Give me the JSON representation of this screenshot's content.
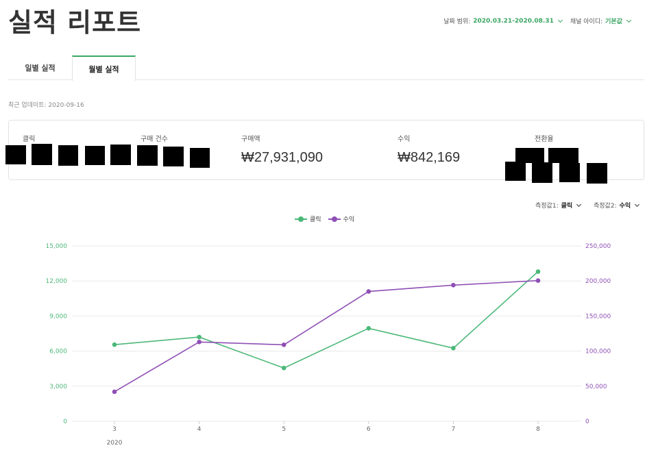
{
  "page": {
    "title": "실적 리포트"
  },
  "filters": {
    "date_label": "날짜 범위:",
    "date_value": "2020.03.21-2020.08.31",
    "channel_label": "채널 아이디:",
    "channel_value": "기본값"
  },
  "tabs": [
    {
      "label": "일별 실적",
      "active": false
    },
    {
      "label": "월별 실적",
      "active": true
    }
  ],
  "last_updated": "최근 업데이트: 2020-09-16",
  "kpis": [
    {
      "label": "클릭",
      "value": "",
      "redacted": true
    },
    {
      "label": "구매 건수",
      "value": "",
      "redacted": true
    },
    {
      "label": "구매액",
      "value": "₩27,931,090"
    },
    {
      "label": "수익",
      "value": "₩842,169"
    },
    {
      "label": "전환율",
      "value": "",
      "redacted": true
    }
  ],
  "measures": [
    {
      "label": "측정값1:",
      "value": "클릭"
    },
    {
      "label": "측정값2:",
      "value": "수익"
    }
  ],
  "colors": {
    "series1": "#4cb878",
    "series2": "#8e4fb5",
    "grid": "#e9e9e9",
    "accent": "#3aa663"
  },
  "chart_data": {
    "type": "line",
    "x": [
      3,
      4,
      5,
      6,
      7,
      8
    ],
    "x_tick_labels": [
      "3",
      "4",
      "5",
      "6",
      "7",
      "8"
    ],
    "x_sublabel": "2020",
    "series": [
      {
        "name": "클릭",
        "axis": "left",
        "values": [
          6550,
          7200,
          4550,
          7950,
          6250,
          12800
        ]
      },
      {
        "name": "수익",
        "axis": "right",
        "values": [
          42000,
          113000,
          109000,
          185000,
          194000,
          200500
        ]
      }
    ],
    "y_left": {
      "range": [
        0,
        15000
      ],
      "ticks": [
        "0",
        "3,000",
        "6,000",
        "9,000",
        "12,000",
        "15,000"
      ]
    },
    "y_right": {
      "range": [
        0,
        250000
      ],
      "ticks": [
        "0",
        "50,000",
        "100,000",
        "150,000",
        "200,000",
        "250,000"
      ]
    },
    "grid": true,
    "legend": "top-center"
  }
}
